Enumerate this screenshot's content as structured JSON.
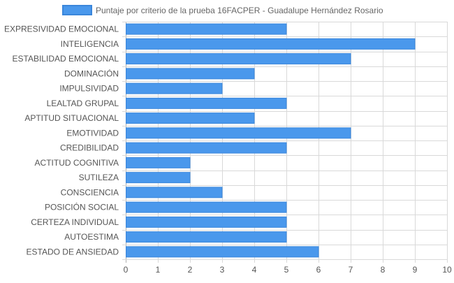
{
  "chart_data": {
    "type": "bar",
    "orientation": "horizontal",
    "legend": {
      "position": "top",
      "label": "Puntaje por criterio de la prueba 16FACPER - Guadalupe Hernández Rosario"
    },
    "categories": [
      "EXPRESIVIDAD EMOCIONAL",
      "INTELIGENCIA",
      "ESTABILIDAD EMOCIONAL",
      "DOMINACIÓN",
      "IMPULSIVIDAD",
      "LEALTAD GRUPAL",
      "APTITUD SITUACIONAL",
      "EMOTIVIDAD",
      "CREDIBILIDAD",
      "ACTITUD COGNITIVA",
      "SUTILEZA",
      "CONSCIENCIA",
      "POSICIÓN SOCIAL",
      "CERTEZA INDIVIDUAL",
      "AUTOESTIMA",
      "ESTADO DE ANSIEDAD"
    ],
    "series": [
      {
        "name": "Puntaje por criterio de la prueba 16FACPER - Guadalupe Hernández Rosario",
        "values": [
          5,
          9,
          7,
          4,
          3,
          5,
          4,
          7,
          5,
          2,
          2,
          3,
          5,
          5,
          5,
          6
        ]
      }
    ],
    "xlim": [
      0,
      10
    ],
    "x_ticks": [
      "0",
      "1",
      "2",
      "3",
      "4",
      "5",
      "6",
      "7",
      "8",
      "9",
      "10"
    ],
    "grid": true,
    "colors": {
      "bar_fill": "#4a98ec",
      "bar_border": "#3a86db",
      "legend_swatch": "#4a98ec"
    }
  }
}
